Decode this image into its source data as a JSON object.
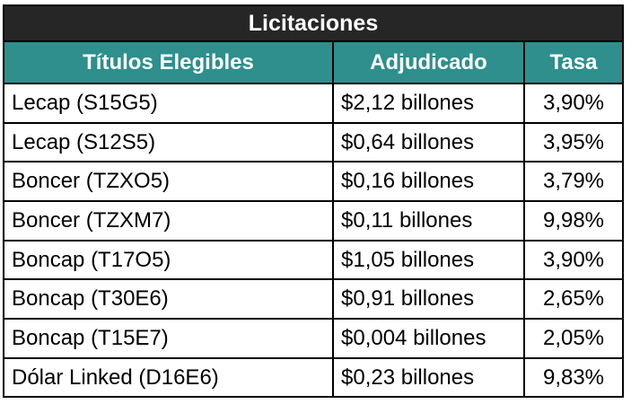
{
  "title": "Licitaciones",
  "colors": {
    "title_bg": "#262626",
    "header_bg": "#2e8f8c",
    "header_text": "#ffffff",
    "border": "#000000"
  },
  "headers": [
    "Títulos Elegibles",
    "Adjudicado",
    "Tasa"
  ],
  "rows": [
    {
      "titulo": "Lecap (S15G5)",
      "adjudicado": "$2,12 billones",
      "tasa": "3,90%"
    },
    {
      "titulo": "Lecap (S12S5)",
      "adjudicado": "$0,64 billones",
      "tasa": "3,95%"
    },
    {
      "titulo": "Boncer (TZXO5)",
      "adjudicado": "$0,16 billones",
      "tasa": "3,79%"
    },
    {
      "titulo": "Boncer (TZXM7)",
      "adjudicado": "$0,11 billones",
      "tasa": "9,98%"
    },
    {
      "titulo": "Boncap (T17O5)",
      "adjudicado": "$1,05 billones",
      "tasa": "3,90%"
    },
    {
      "titulo": "Boncap (T30E6)",
      "adjudicado": "$0,91 billones",
      "tasa": "2,65%"
    },
    {
      "titulo": "Boncap (T15E7)",
      "adjudicado": "$0,004 billones",
      "tasa": "2,05%"
    },
    {
      "titulo": "Dólar Linked (D16E6)",
      "adjudicado": "$0,23 billones",
      "tasa": "9,83%"
    }
  ]
}
